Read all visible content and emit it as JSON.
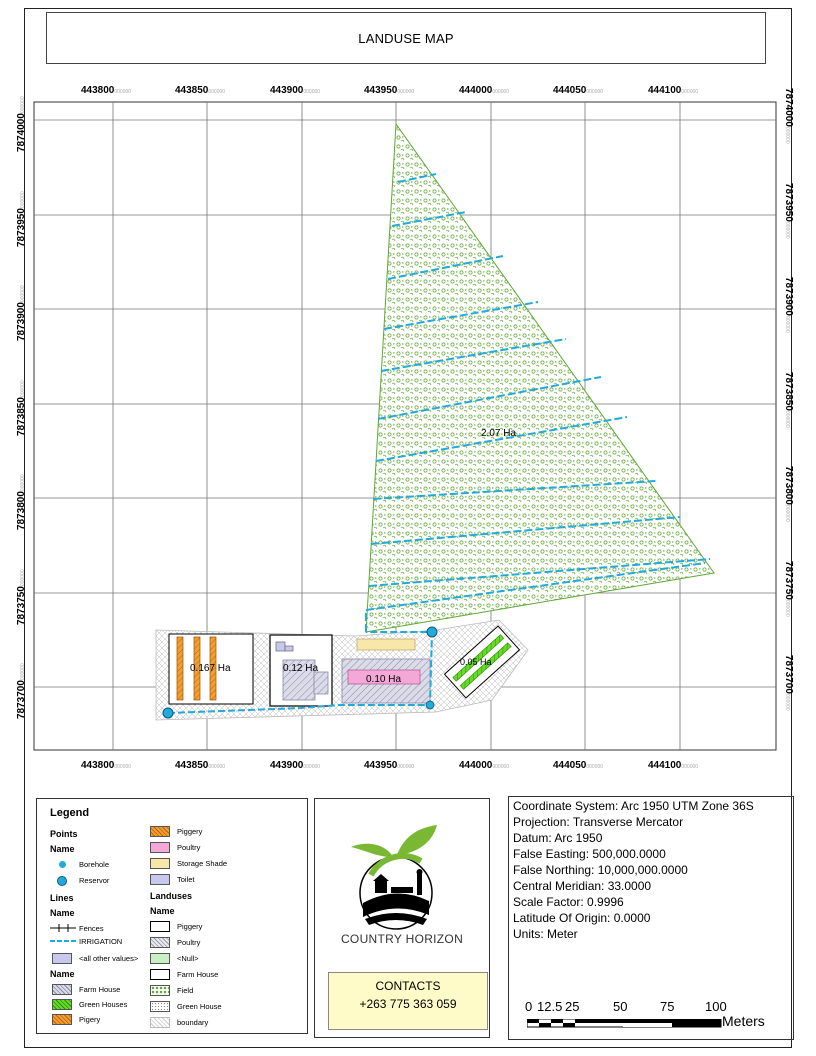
{
  "title": "LANDUSE MAP",
  "grid": {
    "x_labels": [
      "443800",
      "443850",
      "443900",
      "443950",
      "444000",
      "444050",
      "444100"
    ],
    "y_labels": [
      "7874000",
      "7873950",
      "7873900",
      "7873850",
      "7873800",
      "7873750",
      "7873700"
    ],
    "label_suffix": "000000"
  },
  "map_labels": {
    "field_area": "2.07 Ha",
    "piggery_area": "0.167 Ha",
    "farmhouse_area": "0.12 Ha",
    "poultry_area": "0.10 Ha",
    "greenhouse_area": "0.05 Ha"
  },
  "legend": {
    "title": "Legend",
    "points_head": "Points",
    "points_name": "Name",
    "borehole": "Borehole",
    "reservor": "Reservor",
    "lines_head": "Lines",
    "lines_name": "Name",
    "fences": "Fences",
    "irrigation": "IRRIGATION",
    "all_other": "<all other values>",
    "poly_name": "Name",
    "farm_house": "Farm House",
    "green_houses": "Green Houses",
    "pigery": "Pigery",
    "piggery_r": "Piggery",
    "poultry_r": "Poultry",
    "storage_shade": "Storage Shade",
    "toilet": "Toilet",
    "landuses_head": "Landuses",
    "landuses_name": "Name",
    "lu_piggery": "Piggery",
    "lu_poultry": "Poultry",
    "lu_null": "<Null>",
    "lu_farm_house": "Farm House",
    "lu_field": "Field",
    "lu_green_house": "Green House",
    "lu_boundary": "boundary"
  },
  "company": "COUNTRY HORIZON",
  "contacts": {
    "label": "CONTACTS",
    "phone": "+263 775 363 059"
  },
  "coordinate_info": [
    "Coordinate System: Arc 1950 UTM Zone 36S",
    "Projection: Transverse Mercator",
    "Datum: Arc 1950",
    "False Easting: 500,000.0000",
    "False Northing: 10,000,000.0000",
    "Central Meridian: 33.0000",
    "Scale Factor: 0.9996",
    "Latitude Of Origin: 0.0000",
    "Units: Meter"
  ],
  "scale_bar": {
    "labels": [
      "0",
      "12.5",
      "25",
      "50",
      "75",
      "100"
    ],
    "unit": "Meters"
  },
  "colors": {
    "field_green": "#5ea832",
    "irrigation": "#22aadd",
    "greenhouse": "#66dd22",
    "piggery_orange": "#f0a030",
    "poultry_pink": "#f4a8d8",
    "storage": "#f7e7a8",
    "toilet": "#c8c8ee",
    "farmhouse_hatch": "#8888aa"
  }
}
